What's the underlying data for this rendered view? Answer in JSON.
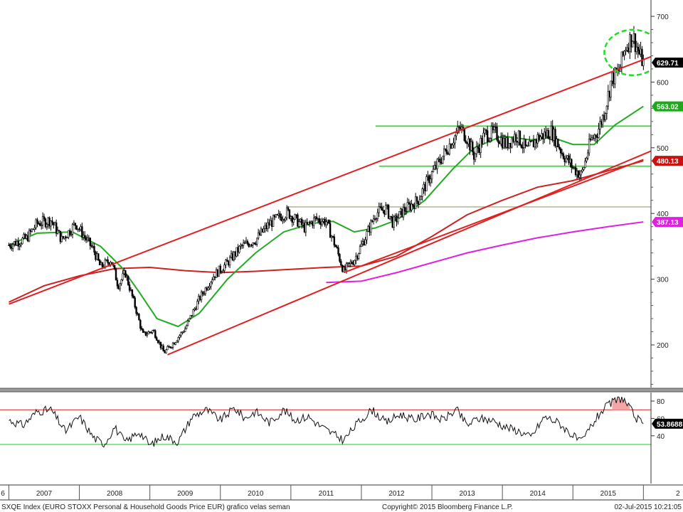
{
  "chart_data": [
    {
      "type": "candlestick",
      "title": "",
      "xlabel": "",
      "ylabel": "",
      "ylim": [
        130,
        730
      ],
      "y_ticks": [
        "700",
        "600",
        "500",
        "400",
        "300",
        "200"
      ],
      "x_tick_labels": [
        "6",
        "2007",
        "2008",
        "2009",
        "2010",
        "2011",
        "2012",
        "2013",
        "2014",
        "2015",
        "2"
      ],
      "grid": false,
      "price_path": [
        {
          "x": 2006.5,
          "y": 352
        },
        {
          "x": 2006.75,
          "y": 362
        },
        {
          "x": 2006.9,
          "y": 385
        },
        {
          "x": 2007.1,
          "y": 390
        },
        {
          "x": 2007.25,
          "y": 360
        },
        {
          "x": 2007.45,
          "y": 385
        },
        {
          "x": 2007.55,
          "y": 368
        },
        {
          "x": 2007.7,
          "y": 345
        },
        {
          "x": 2007.8,
          "y": 318
        },
        {
          "x": 2007.95,
          "y": 330
        },
        {
          "x": 2008.05,
          "y": 290
        },
        {
          "x": 2008.15,
          "y": 310
        },
        {
          "x": 2008.3,
          "y": 255
        },
        {
          "x": 2008.4,
          "y": 215
        },
        {
          "x": 2008.55,
          "y": 222
        },
        {
          "x": 2008.7,
          "y": 188
        },
        {
          "x": 2008.85,
          "y": 205
        },
        {
          "x": 2009.0,
          "y": 225
        },
        {
          "x": 2009.2,
          "y": 270
        },
        {
          "x": 2009.4,
          "y": 305
        },
        {
          "x": 2009.6,
          "y": 325
        },
        {
          "x": 2009.8,
          "y": 350
        },
        {
          "x": 2010.0,
          "y": 360
        },
        {
          "x": 2010.2,
          "y": 385
        },
        {
          "x": 2010.45,
          "y": 402
        },
        {
          "x": 2010.7,
          "y": 378
        },
        {
          "x": 2010.85,
          "y": 392
        },
        {
          "x": 2011.0,
          "y": 388
        },
        {
          "x": 2011.15,
          "y": 345
        },
        {
          "x": 2011.25,
          "y": 312
        },
        {
          "x": 2011.4,
          "y": 330
        },
        {
          "x": 2011.55,
          "y": 362
        },
        {
          "x": 2011.7,
          "y": 400
        },
        {
          "x": 2011.85,
          "y": 408
        },
        {
          "x": 2011.95,
          "y": 385
        },
        {
          "x": 2012.1,
          "y": 405
        },
        {
          "x": 2012.3,
          "y": 420
        },
        {
          "x": 2012.45,
          "y": 452
        },
        {
          "x": 2012.6,
          "y": 478
        },
        {
          "x": 2012.75,
          "y": 505
        },
        {
          "x": 2012.9,
          "y": 530
        },
        {
          "x": 2013.0,
          "y": 515
        },
        {
          "x": 2013.1,
          "y": 488
        },
        {
          "x": 2013.25,
          "y": 520
        },
        {
          "x": 2013.4,
          "y": 522
        },
        {
          "x": 2013.55,
          "y": 505
        },
        {
          "x": 2013.7,
          "y": 520
        },
        {
          "x": 2013.85,
          "y": 495
        },
        {
          "x": 2014.0,
          "y": 515
        },
        {
          "x": 2014.2,
          "y": 525
        },
        {
          "x": 2014.35,
          "y": 492
        },
        {
          "x": 2014.5,
          "y": 470
        },
        {
          "x": 2014.62,
          "y": 458
        },
        {
          "x": 2014.75,
          "y": 510
        },
        {
          "x": 2014.85,
          "y": 525
        },
        {
          "x": 2014.95,
          "y": 555
        },
        {
          "x": 2015.05,
          "y": 605
        },
        {
          "x": 2015.15,
          "y": 615
        },
        {
          "x": 2015.25,
          "y": 655
        },
        {
          "x": 2015.35,
          "y": 670
        },
        {
          "x": 2015.45,
          "y": 640
        },
        {
          "x": 2015.5,
          "y": 629.71
        }
      ],
      "moving_averages": [
        {
          "color": "#22aa22",
          "points": [
            {
              "x": 2006.5,
              "y": 352
            },
            {
              "x": 2006.9,
              "y": 370
            },
            {
              "x": 2007.4,
              "y": 372
            },
            {
              "x": 2007.8,
              "y": 350
            },
            {
              "x": 2008.1,
              "y": 318
            },
            {
              "x": 2008.35,
              "y": 280
            },
            {
              "x": 2008.6,
              "y": 240
            },
            {
              "x": 2008.9,
              "y": 228
            },
            {
              "x": 2009.2,
              "y": 248
            },
            {
              "x": 2009.6,
              "y": 300
            },
            {
              "x": 2010.0,
              "y": 340
            },
            {
              "x": 2010.4,
              "y": 372
            },
            {
              "x": 2010.8,
              "y": 385
            },
            {
              "x": 2011.1,
              "y": 388
            },
            {
              "x": 2011.4,
              "y": 372
            },
            {
              "x": 2011.7,
              "y": 378
            },
            {
              "x": 2012.0,
              "y": 390
            },
            {
              "x": 2012.4,
              "y": 420
            },
            {
              "x": 2012.8,
              "y": 468
            },
            {
              "x": 2013.1,
              "y": 500
            },
            {
              "x": 2013.5,
              "y": 518
            },
            {
              "x": 2013.9,
              "y": 512
            },
            {
              "x": 2014.2,
              "y": 516
            },
            {
              "x": 2014.5,
              "y": 505
            },
            {
              "x": 2014.8,
              "y": 505
            },
            {
              "x": 2015.1,
              "y": 535
            },
            {
              "x": 2015.5,
              "y": 563.02
            }
          ]
        },
        {
          "color": "#cc2222",
          "points": [
            {
              "x": 2006.5,
              "y": 265
            },
            {
              "x": 2007.0,
              "y": 290
            },
            {
              "x": 2007.5,
              "y": 305
            },
            {
              "x": 2008.0,
              "y": 316
            },
            {
              "x": 2008.5,
              "y": 318
            },
            {
              "x": 2009.0,
              "y": 313
            },
            {
              "x": 2009.5,
              "y": 310
            },
            {
              "x": 2010.0,
              "y": 312
            },
            {
              "x": 2010.5,
              "y": 315
            },
            {
              "x": 2011.0,
              "y": 318
            },
            {
              "x": 2011.5,
              "y": 320
            },
            {
              "x": 2012.0,
              "y": 335
            },
            {
              "x": 2012.5,
              "y": 365
            },
            {
              "x": 2013.0,
              "y": 398
            },
            {
              "x": 2013.5,
              "y": 420
            },
            {
              "x": 2014.0,
              "y": 440
            },
            {
              "x": 2014.5,
              "y": 450
            },
            {
              "x": 2015.0,
              "y": 465
            },
            {
              "x": 2015.5,
              "y": 480.13
            }
          ]
        },
        {
          "color": "#e020e0",
          "points": [
            {
              "x": 2011.0,
              "y": 295
            },
            {
              "x": 2011.5,
              "y": 297
            },
            {
              "x": 2012.0,
              "y": 310
            },
            {
              "x": 2012.5,
              "y": 325
            },
            {
              "x": 2013.0,
              "y": 340
            },
            {
              "x": 2013.5,
              "y": 352
            },
            {
              "x": 2014.0,
              "y": 363
            },
            {
              "x": 2014.5,
              "y": 372
            },
            {
              "x": 2015.0,
              "y": 380
            },
            {
              "x": 2015.5,
              "y": 387.13
            }
          ]
        }
      ],
      "trend_lines": [
        {
          "color": "#e02020",
          "from": {
            "x": 2006.5,
            "y": 262
          },
          "to": {
            "x": 2016.05,
            "y": 657
          }
        },
        {
          "color": "#e02020",
          "from": {
            "x": 2008.75,
            "y": 185
          },
          "to": {
            "x": 2016.05,
            "y": 515
          }
        },
        {
          "color": "#e02020",
          "from": {
            "x": 2011.25,
            "y": 310
          },
          "to": {
            "x": 2015.5,
            "y": 482
          }
        }
      ],
      "horizontal_levels": [
        {
          "color": "#22dd22",
          "y": 533,
          "from": 2011.7
        },
        {
          "color": "#22dd22",
          "y": 472,
          "from": 2011.75
        },
        {
          "color": "#b8b89a",
          "y": 410,
          "from": 2010.45
        }
      ],
      "highlight_circle": {
        "x": 2015.35,
        "y": 645
      },
      "last_values": [
        {
          "value": "629.71",
          "y": 629.71,
          "color": "#000000",
          "text_color": "#ffffff"
        },
        {
          "value": "563.02",
          "y": 563.02,
          "color": "#1aaa1a",
          "text_color": "#ffffff"
        },
        {
          "value": "480.13",
          "y": 480.13,
          "color": "#cc1111",
          "text_color": "#ffffff"
        },
        {
          "value": "387.13",
          "y": 387.13,
          "color": "#e020e0",
          "text_color": "#ffffff"
        }
      ]
    },
    {
      "type": "line",
      "title": "",
      "ylim": [
        25,
        87
      ],
      "y_ticks": [
        "80",
        "60",
        "40"
      ],
      "upper_band": 70,
      "lower_band": 30,
      "band_colors": {
        "upper": "#e02020",
        "lower": "#22cc22"
      },
      "series": [
        {
          "values": [
            {
              "x": 2006.5,
              "y": 58
            },
            {
              "x": 2006.7,
              "y": 52
            },
            {
              "x": 2006.9,
              "y": 68
            },
            {
              "x": 2007.1,
              "y": 70
            },
            {
              "x": 2007.3,
              "y": 45
            },
            {
              "x": 2007.5,
              "y": 62
            },
            {
              "x": 2007.7,
              "y": 38
            },
            {
              "x": 2007.85,
              "y": 30
            },
            {
              "x": 2008.0,
              "y": 50
            },
            {
              "x": 2008.15,
              "y": 32
            },
            {
              "x": 2008.35,
              "y": 45
            },
            {
              "x": 2008.5,
              "y": 29
            },
            {
              "x": 2008.7,
              "y": 40
            },
            {
              "x": 2008.9,
              "y": 33
            },
            {
              "x": 2009.1,
              "y": 62
            },
            {
              "x": 2009.3,
              "y": 70
            },
            {
              "x": 2009.5,
              "y": 58
            },
            {
              "x": 2009.7,
              "y": 72
            },
            {
              "x": 2009.85,
              "y": 60
            },
            {
              "x": 2010.0,
              "y": 68
            },
            {
              "x": 2010.2,
              "y": 55
            },
            {
              "x": 2010.4,
              "y": 70
            },
            {
              "x": 2010.55,
              "y": 58
            },
            {
              "x": 2010.75,
              "y": 62
            },
            {
              "x": 2010.9,
              "y": 52
            },
            {
              "x": 2011.1,
              "y": 42
            },
            {
              "x": 2011.25,
              "y": 35
            },
            {
              "x": 2011.45,
              "y": 55
            },
            {
              "x": 2011.65,
              "y": 70
            },
            {
              "x": 2011.85,
              "y": 55
            },
            {
              "x": 2012.05,
              "y": 65
            },
            {
              "x": 2012.25,
              "y": 58
            },
            {
              "x": 2012.45,
              "y": 66
            },
            {
              "x": 2012.65,
              "y": 58
            },
            {
              "x": 2012.85,
              "y": 70
            },
            {
              "x": 2013.0,
              "y": 52
            },
            {
              "x": 2013.15,
              "y": 60
            },
            {
              "x": 2013.35,
              "y": 58
            },
            {
              "x": 2013.55,
              "y": 50
            },
            {
              "x": 2013.75,
              "y": 45
            },
            {
              "x": 2013.9,
              "y": 38
            },
            {
              "x": 2014.1,
              "y": 62
            },
            {
              "x": 2014.3,
              "y": 55
            },
            {
              "x": 2014.5,
              "y": 40
            },
            {
              "x": 2014.62,
              "y": 32
            },
            {
              "x": 2014.75,
              "y": 50
            },
            {
              "x": 2014.9,
              "y": 68
            },
            {
              "x": 2015.05,
              "y": 78
            },
            {
              "x": 2015.2,
              "y": 84
            },
            {
              "x": 2015.3,
              "y": 72
            },
            {
              "x": 2015.4,
              "y": 60
            },
            {
              "x": 2015.5,
              "y": 53.87
            }
          ]
        }
      ],
      "last_value": {
        "value": "53.8688",
        "y": 53.87
      }
    }
  ],
  "footer": {
    "left": "SXQE Index (EURO STOXX Personal & Household Goods Price EUR) grafico velas seman",
    "center": "Copyright© 2015 Bloomberg Finance L.P.",
    "right": "02-Jul-2015 10:21:05"
  }
}
